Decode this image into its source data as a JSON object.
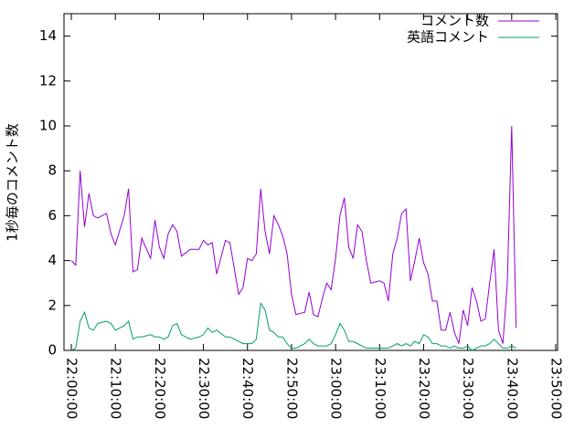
{
  "chart_data": {
    "type": "line",
    "y_label": "1秒毎のコメント数",
    "x": [
      "22:00:00",
      "22:01:00",
      "22:02:00",
      "22:03:00",
      "22:04:00",
      "22:05:00",
      "22:06:00",
      "22:08:00",
      "22:09:00",
      "22:10:00",
      "22:12:00",
      "22:13:00",
      "22:14:00",
      "22:15:00",
      "22:16:00",
      "22:18:00",
      "22:19:00",
      "22:20:00",
      "22:21:00",
      "22:22:00",
      "22:23:00",
      "22:24:00",
      "22:25:00",
      "22:27:00",
      "22:29:00",
      "22:30:00",
      "22:31:00",
      "22:32:00",
      "22:33:00",
      "22:35:00",
      "22:36:00",
      "22:38:00",
      "22:39:00",
      "22:40:00",
      "22:41:00",
      "22:42:00",
      "22:43:00",
      "22:44:00",
      "22:45:00",
      "22:46:00",
      "22:47:00",
      "22:48:00",
      "22:49:00",
      "22:50:00",
      "22:51:00",
      "22:53:00",
      "22:54:00",
      "22:55:00",
      "22:56:00",
      "22:57:00",
      "22:58:00",
      "22:59:00",
      "23:00:00",
      "23:01:00",
      "23:02:00",
      "23:03:00",
      "23:04:00",
      "23:05:00",
      "23:06:00",
      "23:07:00",
      "23:08:00",
      "23:10:00",
      "23:11:00",
      "23:12:00",
      "23:13:00",
      "23:14:00",
      "23:15:00",
      "23:16:00",
      "23:17:00",
      "23:18:00",
      "23:19:00",
      "23:20:00",
      "23:21:00",
      "23:22:00",
      "23:23:00",
      "23:24:00",
      "23:25:00",
      "23:26:00",
      "23:27:00",
      "23:28:00",
      "23:29:00",
      "23:30:00",
      "23:31:00",
      "23:32:00",
      "23:33:00",
      "23:34:00",
      "23:35:00",
      "23:36:00",
      "23:37:00",
      "23:38:00",
      "23:39:00",
      "23:40:00",
      "23:41:00"
    ],
    "series": [
      {
        "name": "コメント数",
        "color": "#9400d3",
        "values": [
          4.0,
          3.8,
          8.0,
          5.5,
          7.0,
          6.0,
          5.9,
          6.1,
          5.2,
          4.7,
          6.0,
          7.2,
          3.5,
          3.6,
          5.0,
          4.1,
          5.8,
          4.6,
          4.1,
          5.2,
          5.6,
          5.3,
          4.2,
          4.5,
          4.5,
          4.9,
          4.7,
          4.8,
          3.4,
          4.9,
          4.8,
          2.5,
          2.8,
          4.1,
          4.0,
          4.3,
          7.2,
          5.3,
          4.3,
          6.0,
          5.6,
          5.1,
          4.3,
          2.5,
          1.6,
          1.7,
          2.6,
          1.6,
          1.5,
          2.3,
          3.0,
          2.7,
          4.1,
          6.0,
          6.8,
          4.6,
          4.1,
          5.6,
          5.3,
          4.0,
          3.0,
          3.1,
          3.0,
          2.2,
          4.3,
          5.0,
          6.1,
          6.3,
          3.1,
          4.0,
          5.0,
          3.9,
          3.4,
          2.2,
          2.2,
          0.9,
          0.9,
          1.7,
          0.8,
          0.3,
          1.8,
          1.1,
          2.8,
          2.2,
          1.3,
          1.4,
          3.0,
          4.5,
          0.9,
          0.3,
          3.0,
          10.0,
          1.0
        ]
      },
      {
        "name": "英語コメント",
        "color": "#009e73",
        "values": [
          0.0,
          0.1,
          1.3,
          1.7,
          1.0,
          0.9,
          1.2,
          1.3,
          1.2,
          0.9,
          1.1,
          1.3,
          0.5,
          0.6,
          0.6,
          0.7,
          0.6,
          0.6,
          0.5,
          0.6,
          1.1,
          1.2,
          0.7,
          0.5,
          0.6,
          0.7,
          1.0,
          0.8,
          0.9,
          0.6,
          0.6,
          0.4,
          0.3,
          0.3,
          0.3,
          0.5,
          2.1,
          1.8,
          0.9,
          0.8,
          0.6,
          0.6,
          0.3,
          0.1,
          0.1,
          0.3,
          0.5,
          0.3,
          0.2,
          0.2,
          0.2,
          0.3,
          0.7,
          1.2,
          0.9,
          0.4,
          0.4,
          0.3,
          0.2,
          0.1,
          0.1,
          0.1,
          0.1,
          0.1,
          0.2,
          0.3,
          0.2,
          0.3,
          0.2,
          0.4,
          0.3,
          0.7,
          0.6,
          0.3,
          0.3,
          0.2,
          0.2,
          0.1,
          0.2,
          0.1,
          0.1,
          0.2,
          0.0,
          0.1,
          0.2,
          0.2,
          0.3,
          0.5,
          0.3,
          0.1,
          0.1,
          0.2,
          0.1
        ]
      }
    ],
    "xlim": [
      "21:58:20",
      "23:50:25"
    ],
    "xticks": [
      "22:00:00",
      "22:10:00",
      "22:20:00",
      "22:30:00",
      "22:40:00",
      "22:50:00",
      "23:00:00",
      "23:10:00",
      "23:20:00",
      "23:30:00",
      "23:40:00",
      "23:50:00"
    ],
    "ylim": [
      0,
      15
    ],
    "yticks": [
      0,
      2,
      4,
      6,
      8,
      10,
      12,
      14
    ],
    "legend": "top-right"
  }
}
